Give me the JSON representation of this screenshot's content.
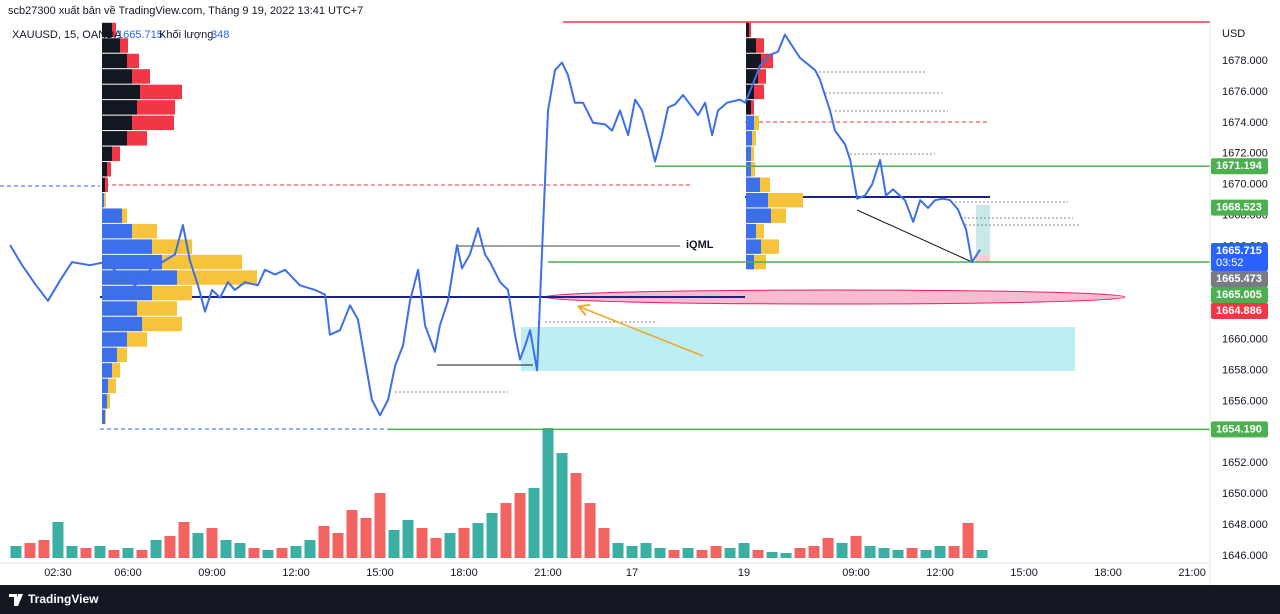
{
  "header": {
    "publisher": "scb27300 xuất bản về TradingView.com, Tháng 9 19, 2022 13:41 UTC+7"
  },
  "footer": {
    "brand": "TradingView"
  },
  "chart_data": {
    "type": "line",
    "symbol": "XAUUSD, 15, OANDA",
    "last_price": 1665.715,
    "volume_label": "Khối lượng",
    "volume_value": 348,
    "currency": "USD",
    "annotation": "iQML",
    "countdown": "03:52",
    "color": "#3d6fe8",
    "x": [
      1.79,
      2.22,
      2.68,
      3.14,
      3.57,
      4.0,
      4.64,
      5.18,
      5.71,
      6.25,
      6.79,
      7.32,
      7.68,
      7.96,
      8.21,
      8.5,
      8.75,
      9.0,
      9.29,
      9.57,
      9.82,
      10.18,
      10.64,
      10.89,
      11.25,
      11.61,
      12.14,
      12.68,
      13.04,
      13.21,
      13.57,
      13.93,
      14.21,
      14.46,
      14.71,
      15.0,
      15.29,
      15.54,
      15.82,
      16.07,
      16.36,
      16.61,
      16.96,
      17.14,
      17.43,
      17.75,
      17.93,
      18.21,
      18.5,
      18.75,
      18.93,
      19.29,
      19.57,
      19.82,
      20.0,
      20.18,
      20.36,
      20.61,
      20.79,
      21.0,
      21.25,
      21.5,
      21.71,
      21.96,
      22.25,
      22.61,
      23.04,
      23.29,
      23.57,
      23.86,
      24.11,
      24.36,
      24.64,
      24.82,
      25.07,
      25.29,
      25.54,
      25.82,
      26.07,
      26.36,
      26.61,
      26.86,
      27.07,
      27.39,
      27.86,
      28.04,
      28.29,
      28.57,
      28.93,
      29.21,
      29.46,
      29.71,
      30.0,
      30.54,
      30.71,
      31.07,
      31.25,
      31.61,
      31.79,
      32.04,
      32.32,
      32.57,
      32.86,
      33.07,
      33.32,
      33.75,
      34.04,
      34.29,
      34.57,
      34.82,
      35.11,
      35.36,
      35.64,
      35.93,
      36.14,
      36.43
    ],
    "values": [
      1666.1,
      1664.8,
      1663.6,
      1662.5,
      1663.8,
      1665.0,
      1664.8,
      1665.0,
      1664.2,
      1663.5,
      1664.5,
      1665.1,
      1665.5,
      1667.4,
      1665.1,
      1663.5,
      1661.8,
      1663.2,
      1662.7,
      1663.7,
      1663.2,
      1663.7,
      1663.5,
      1664.5,
      1664.2,
      1664.5,
      1663.5,
      1663.2,
      1662.9,
      1660.3,
      1660.6,
      1662.2,
      1661.3,
      1658.7,
      1656.1,
      1655.1,
      1656.1,
      1658.3,
      1659.6,
      1662.5,
      1664.5,
      1660.9,
      1659.2,
      1660.9,
      1662.5,
      1666.1,
      1664.6,
      1665.5,
      1667.2,
      1665.5,
      1665.0,
      1663.7,
      1663.2,
      1660.3,
      1658.7,
      1659.6,
      1660.6,
      1658.0,
      1665.8,
      1674.8,
      1677.4,
      1677.9,
      1677.1,
      1675.3,
      1675.3,
      1674.0,
      1673.9,
      1673.5,
      1674.8,
      1673.2,
      1675.5,
      1674.8,
      1672.9,
      1671.5,
      1673.2,
      1675.0,
      1675.2,
      1675.8,
      1675.2,
      1674.5,
      1675.3,
      1673.2,
      1674.8,
      1675.3,
      1675.5,
      1675.3,
      1676.4,
      1677.7,
      1678.4,
      1678.6,
      1679.7,
      1679.0,
      1678.2,
      1677.4,
      1676.8,
      1674.8,
      1673.5,
      1672.6,
      1671.6,
      1669.1,
      1669.3,
      1670.0,
      1671.6,
      1669.3,
      1669.7,
      1669.0,
      1667.6,
      1669.0,
      1668.5,
      1669.0,
      1669.1,
      1669.0,
      1668.4,
      1667.1,
      1665.0,
      1665.8
    ],
    "xlim": [
      1.43,
      44.64
    ],
    "xticks": [
      {
        "value": 3.5,
        "label": "02:30"
      },
      {
        "value": 6,
        "label": "06:00"
      },
      {
        "value": 9,
        "label": "09:00"
      },
      {
        "value": 12,
        "label": "12:00"
      },
      {
        "value": 15,
        "label": "15:00"
      },
      {
        "value": 18,
        "label": "18:00"
      },
      {
        "value": 21,
        "label": "21:00"
      },
      {
        "value": 24,
        "label": "17"
      },
      {
        "value": 28,
        "label": "19"
      },
      {
        "value": 32,
        "label": "09:00"
      },
      {
        "value": 35,
        "label": "12:00"
      },
      {
        "value": 38,
        "label": "15:00"
      },
      {
        "value": 41,
        "label": "18:00"
      },
      {
        "value": 44,
        "label": "21:00"
      }
    ],
    "ylim": [
      1644.97,
      1681.94
    ],
    "yticks": [
      {
        "value": 1646,
        "label": "1646.000"
      },
      {
        "value": 1648,
        "label": "1648.000"
      },
      {
        "value": 1650,
        "label": "1650.000"
      },
      {
        "value": 1652,
        "label": "1652.000"
      },
      {
        "value": 1654,
        "label": "1654.000"
      },
      {
        "value": 1656,
        "label": "1656.000"
      },
      {
        "value": 1658,
        "label": "1658.000"
      },
      {
        "value": 1660,
        "label": "1660.000"
      },
      {
        "value": 1662,
        "label": "1662.000"
      },
      {
        "value": 1664,
        "label": "1664.000"
      },
      {
        "value": 1666,
        "label": "1666.000"
      },
      {
        "value": 1668,
        "label": "1668.000"
      },
      {
        "value": 1670,
        "label": "1670.000"
      },
      {
        "value": 1672,
        "label": "1672.000"
      },
      {
        "value": 1674,
        "label": "1674.000"
      },
      {
        "value": 1676,
        "label": "1676.000"
      },
      {
        "value": 1678,
        "label": "1678.000"
      }
    ],
    "price_labels": [
      {
        "value": 1671.194,
        "color": "#4caf50"
      },
      {
        "value": 1668.523,
        "color": "#4caf50"
      },
      {
        "value": 1665.715,
        "color": "#2962ff"
      },
      {
        "value": 1665.473,
        "color": "#787b86"
      },
      {
        "value": 1665.005,
        "color": "#4caf50"
      },
      {
        "value": 1664.886,
        "color": "#f23645"
      },
      {
        "value": 1654.19,
        "label": "1654.190",
        "color": "#4caf50"
      }
    ],
    "volume": {
      "type": "bar",
      "ylim": [
        0,
        140
      ],
      "x": [
        2,
        2.5,
        3,
        3.5,
        4,
        4.5,
        5,
        5.5,
        6,
        6.5,
        7,
        7.5,
        8,
        8.5,
        9,
        9.5,
        10,
        10.5,
        11,
        11.5,
        12,
        12.5,
        13,
        13.5,
        14,
        14.5,
        15,
        15.5,
        16,
        16.5,
        17,
        17.5,
        18,
        18.5,
        19,
        19.5,
        20,
        20.5,
        21,
        21.5,
        22,
        22.5,
        23,
        23.5,
        24,
        24.5,
        25,
        25.5,
        26,
        26.5,
        27,
        27.5,
        28,
        28.5,
        29,
        29.5,
        30,
        30.5,
        31,
        31.5,
        32,
        32.5,
        33,
        33.5,
        34,
        34.5,
        35,
        35.5,
        36,
        36.5
      ],
      "values": [
        12,
        15,
        18,
        36,
        12,
        10,
        12,
        8,
        10,
        8,
        18,
        22,
        36,
        25,
        30,
        18,
        15,
        10,
        8,
        10,
        12,
        18,
        32,
        25,
        48,
        40,
        65,
        28,
        38,
        30,
        20,
        25,
        30,
        35,
        45,
        55,
        65,
        70,
        130,
        105,
        85,
        55,
        30,
        15,
        12,
        15,
        10,
        8,
        10,
        8,
        12,
        10,
        15,
        8,
        6,
        5,
        10,
        12,
        20,
        15,
        22,
        12,
        10,
        8,
        10,
        8,
        12,
        12,
        35,
        8
      ],
      "colors": [
        "#26a69a",
        "#ef5350",
        "#ef5350",
        "#26a69a",
        "#26a69a",
        "#ef5350",
        "#26a69a",
        "#ef5350",
        "#26a69a",
        "#ef5350",
        "#26a69a",
        "#ef5350",
        "#ef5350",
        "#26a69a",
        "#ef5350",
        "#26a69a",
        "#26a69a",
        "#ef5350",
        "#26a69a",
        "#ef5350",
        "#26a69a",
        "#26a69a",
        "#ef5350",
        "#ef5350",
        "#ef5350",
        "#ef5350",
        "#ef5350",
        "#26a69a",
        "#26a69a",
        "#ef5350",
        "#ef5350",
        "#26a69a",
        "#ef5350",
        "#26a69a",
        "#26a69a",
        "#ef5350",
        "#ef5350",
        "#26a69a",
        "#26a69a",
        "#26a69a",
        "#ef5350",
        "#ef5350",
        "#ef5350",
        "#26a69a",
        "#26a69a",
        "#26a69a",
        "#26a69a",
        "#ef5350",
        "#26a69a",
        "#ef5350",
        "#ef5350",
        "#26a69a",
        "#26a69a",
        "#ef5350",
        "#26a69a",
        "#26a69a",
        "#ef5350",
        "#ef5350",
        "#ef5350",
        "#26a69a",
        "#ef5350",
        "#26a69a",
        "#26a69a",
        "#26a69a",
        "#ef5350",
        "#26a69a",
        "#26a69a",
        "#ef5350",
        "#ef5350",
        "#26a69a"
      ]
    },
    "profiles": [
      {
        "prices": [
          1680,
          1679,
          1678,
          1677,
          1676,
          1675,
          1674,
          1673,
          1672,
          1671,
          1670
        ],
        "series": [
          {
            "color": "#131722",
            "values": [
              10,
              18,
              25,
              30,
              38,
              35,
              30,
              25,
              10,
              5,
              3
            ]
          },
          {
            "color": "#f23645",
            "values": [
              4,
              8,
              12,
              18,
              42,
              38,
              42,
              20,
              8,
              4,
              3
            ]
          }
        ]
      },
      {
        "prices": [
          1669,
          1668,
          1667,
          1666,
          1665,
          1664,
          1663,
          1662,
          1661,
          1660,
          1659,
          1658,
          1657,
          1656,
          1655
        ],
        "series": [
          {
            "color": "#3d6fe8",
            "values": [
              2,
              20,
              30,
              50,
              60,
              75,
              50,
              35,
              40,
              25,
              15,
              10,
              6,
              5,
              3
            ]
          },
          {
            "color": "#f7c33c",
            "values": [
              2,
              5,
              25,
              40,
              80,
              80,
              40,
              40,
              40,
              20,
              10,
              8,
              8,
              3,
              1
            ]
          }
        ]
      },
      {
        "prices": [
          1680,
          1679,
          1678,
          1677,
          1676,
          1675
        ],
        "series": [
          {
            "color": "#131722",
            "values": [
              3,
              10,
              15,
              12,
              8,
              5
            ]
          },
          {
            "color": "#f23645",
            "values": [
              2,
              8,
              12,
              8,
              10,
              3
            ]
          }
        ]
      },
      {
        "prices": [
          1674,
          1673,
          1672,
          1671,
          1670,
          1669,
          1668,
          1667,
          1666,
          1665
        ],
        "series": [
          {
            "color": "#3d6fe8",
            "values": [
              8,
              6,
              5,
              5,
              14,
              22,
              25,
              10,
              15,
              8
            ]
          },
          {
            "color": "#f7c33c",
            "values": [
              5,
              4,
              3,
              4,
              10,
              35,
              15,
              8,
              18,
              12
            ]
          }
        ]
      }
    ]
  }
}
